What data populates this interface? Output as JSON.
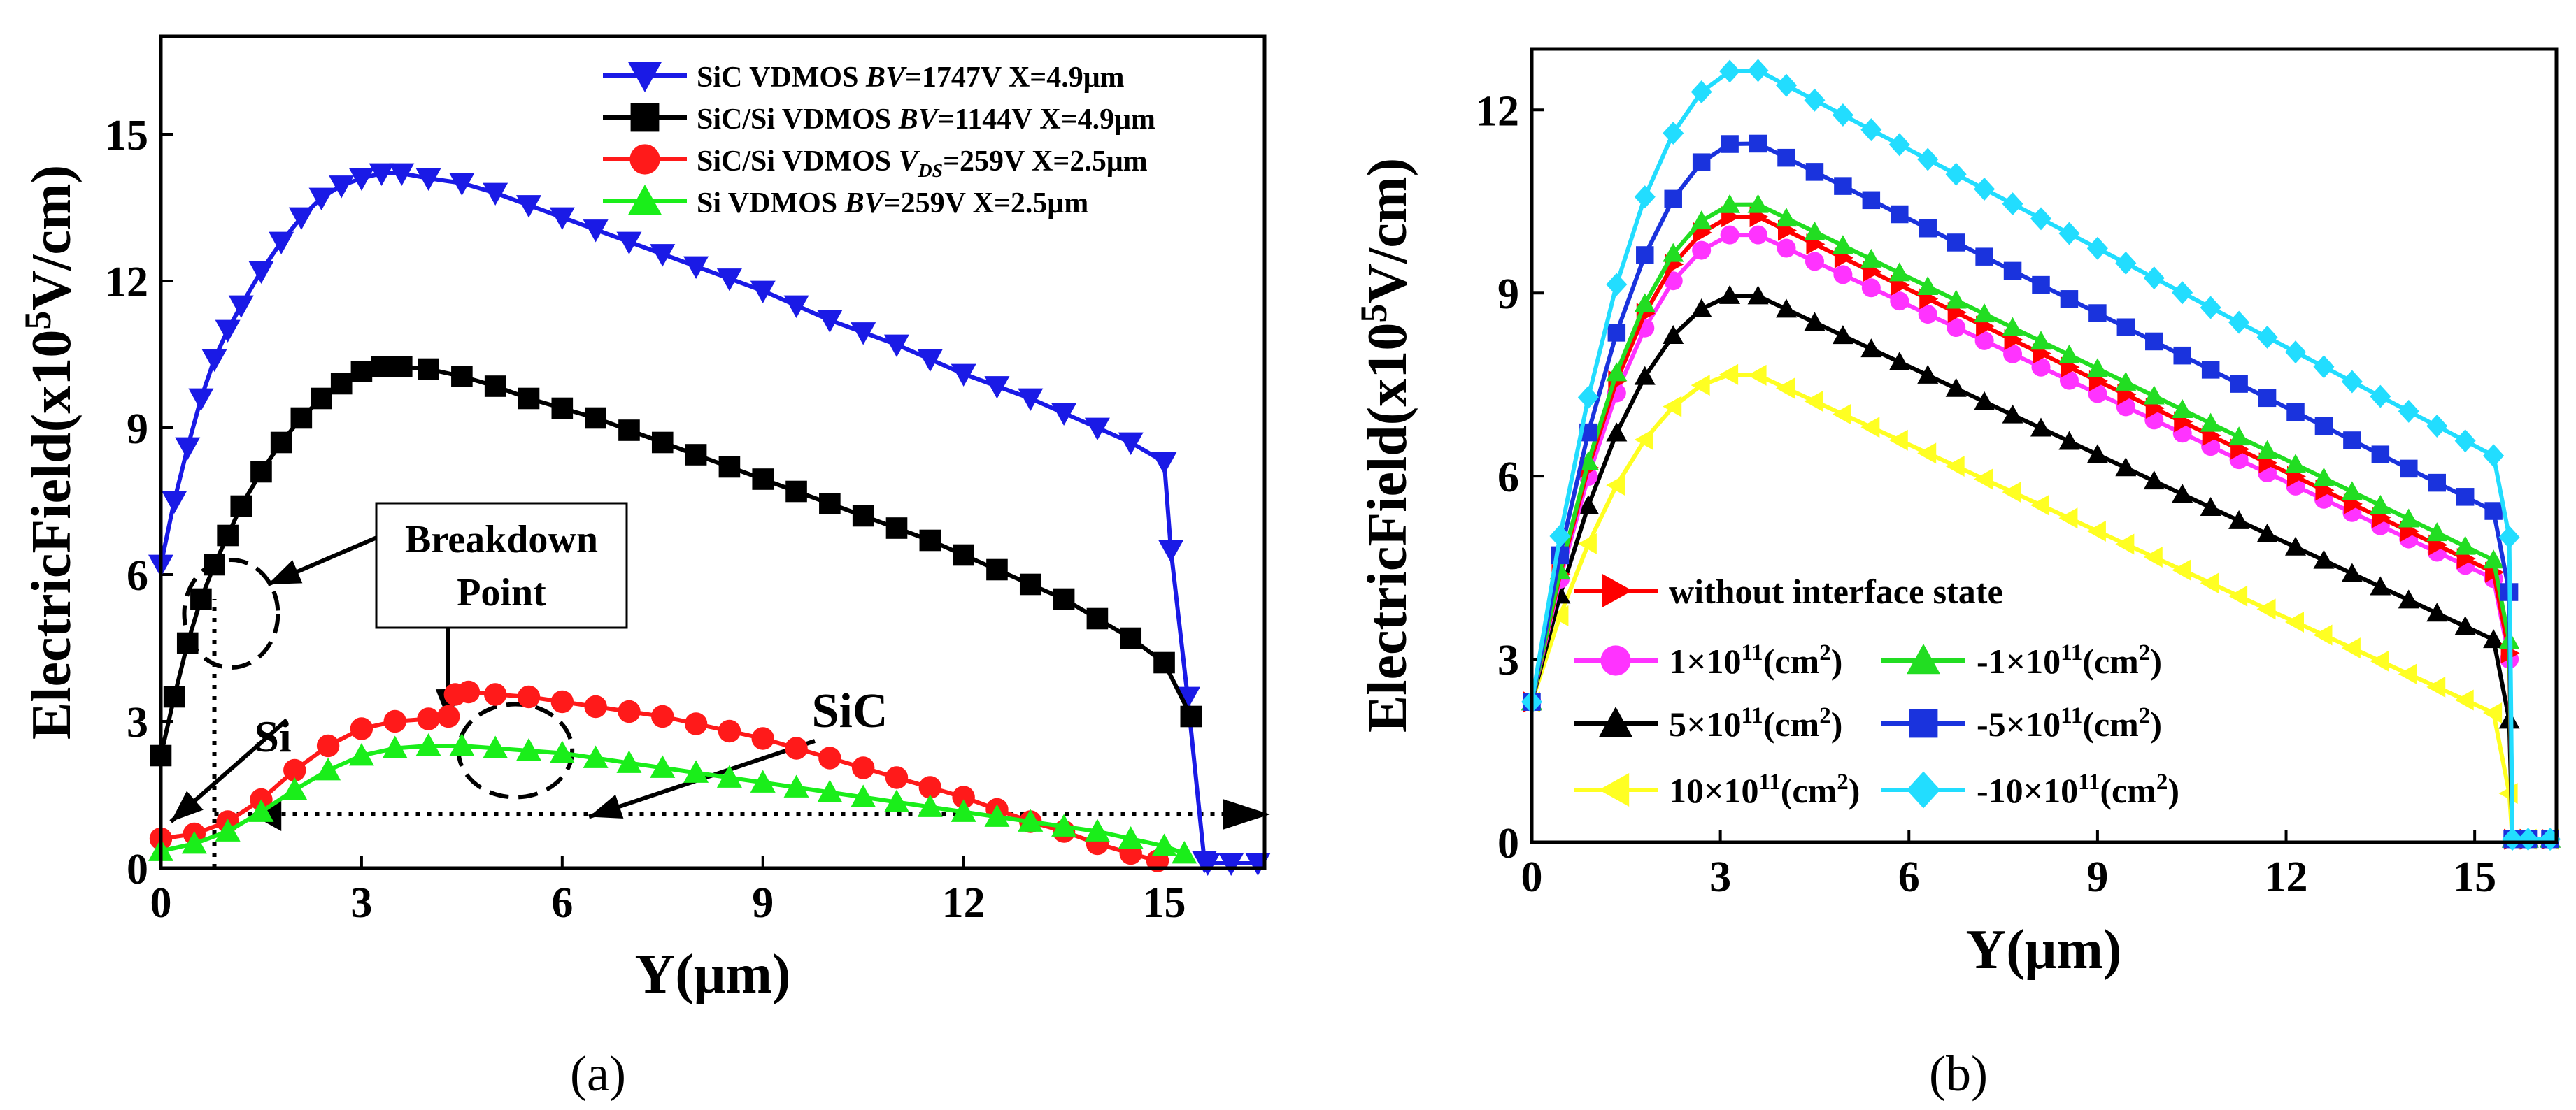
{
  "chart_data": [
    {
      "id": "a",
      "type": "line",
      "xlabel": "Y(μm)",
      "ylabel_parts": [
        "ElectricField(x10",
        "5",
        "V/cm)"
      ],
      "xlim": [
        0,
        16.5
      ],
      "ylim": [
        0,
        17
      ],
      "xticks": [
        0,
        3,
        6,
        9,
        12,
        15
      ],
      "yticks": [
        0,
        3,
        6,
        9,
        12,
        15
      ],
      "caption": "(a)",
      "legend_position": "top-right",
      "series": [
        {
          "name": "SiC VDMOS BV=1747V X=4.9μm",
          "legend_parts": [
            [
              "SiC VDMOS ",
              "n"
            ],
            [
              "BV",
              "i"
            ],
            [
              "=1747V X=4.9μm",
              "n"
            ]
          ],
          "color": "#1a1ae6",
          "marker": "tri_down",
          "x": [
            0,
            0.2,
            0.4,
            0.6,
            0.8,
            1.0,
            1.2,
            1.5,
            1.8,
            2.1,
            2.4,
            2.7,
            3.0,
            3.3,
            3.6,
            4.0,
            4.5,
            5.0,
            5.5,
            6.0,
            6.5,
            7.0,
            7.5,
            8.0,
            8.5,
            9.0,
            9.5,
            10.0,
            10.5,
            11.0,
            11.5,
            12.0,
            12.5,
            13.0,
            13.5,
            14.0,
            14.5,
            15.0,
            15.1,
            15.35,
            15.6,
            15.65,
            16.0,
            16.4
          ],
          "y": [
            6.2,
            7.5,
            8.6,
            9.6,
            10.4,
            11.0,
            11.5,
            12.2,
            12.8,
            13.3,
            13.7,
            13.95,
            14.1,
            14.2,
            14.2,
            14.1,
            14.0,
            13.8,
            13.55,
            13.3,
            13.05,
            12.8,
            12.55,
            12.3,
            12.05,
            11.8,
            11.5,
            11.2,
            10.95,
            10.7,
            10.4,
            10.1,
            9.85,
            9.6,
            9.3,
            9.0,
            8.7,
            8.3,
            6.5,
            3.5,
            0.15,
            0.1,
            0.1,
            0.1
          ]
        },
        {
          "name": "SiC/Si VDMOS BV=1144V X=4.9μm",
          "legend_parts": [
            [
              "SiC/Si VDMOS ",
              "n"
            ],
            [
              "BV",
              "i"
            ],
            [
              "=1144V X=4.9μm",
              "n"
            ]
          ],
          "color": "#000000",
          "marker": "square",
          "x": [
            0,
            0.2,
            0.4,
            0.6,
            0.8,
            1.0,
            1.2,
            1.5,
            1.8,
            2.1,
            2.4,
            2.7,
            3.0,
            3.3,
            3.6,
            4.0,
            4.5,
            5.0,
            5.5,
            6.0,
            6.5,
            7.0,
            7.5,
            8.0,
            8.5,
            9.0,
            9.5,
            10.0,
            10.5,
            11.0,
            11.5,
            12.0,
            12.5,
            13.0,
            13.5,
            14.0,
            14.5,
            15.0,
            15.4
          ],
          "y": [
            2.3,
            3.5,
            4.6,
            5.5,
            6.2,
            6.8,
            7.4,
            8.1,
            8.7,
            9.2,
            9.6,
            9.9,
            10.15,
            10.25,
            10.25,
            10.2,
            10.05,
            9.85,
            9.6,
            9.4,
            9.2,
            8.95,
            8.7,
            8.45,
            8.2,
            7.95,
            7.7,
            7.45,
            7.2,
            6.95,
            6.7,
            6.4,
            6.1,
            5.8,
            5.5,
            5.1,
            4.7,
            4.2,
            3.1
          ]
        },
        {
          "name": "SiC/Si VDMOS VDS=259V X=2.5μm",
          "legend_parts": [
            [
              "SiC/Si VDMOS ",
              "n"
            ],
            [
              "V",
              "i"
            ],
            [
              "DS",
              "isub"
            ],
            [
              "=259V X=2.5μm",
              "n"
            ]
          ],
          "color": "#ff1a1a",
          "marker": "circle",
          "x": [
            0,
            0.5,
            1.0,
            1.5,
            2.0,
            2.5,
            3.0,
            3.5,
            4.0,
            4.3,
            4.4,
            4.6,
            5.0,
            5.5,
            6.0,
            6.5,
            7.0,
            7.5,
            8.0,
            8.5,
            9.0,
            9.5,
            10.0,
            10.5,
            11.0,
            11.5,
            12.0,
            12.5,
            13.0,
            13.5,
            14.0,
            14.5,
            14.9
          ],
          "y": [
            0.6,
            0.7,
            0.95,
            1.4,
            2.0,
            2.5,
            2.85,
            3.0,
            3.05,
            3.1,
            3.55,
            3.6,
            3.55,
            3.5,
            3.4,
            3.3,
            3.2,
            3.1,
            2.95,
            2.8,
            2.65,
            2.45,
            2.25,
            2.05,
            1.85,
            1.65,
            1.45,
            1.2,
            0.95,
            0.75,
            0.5,
            0.3,
            0.15
          ]
        },
        {
          "name": "Si VDMOS BV=259V X=2.5μm",
          "legend_parts": [
            [
              "Si VDMOS ",
              "n"
            ],
            [
              "BV",
              "i"
            ],
            [
              "=259V X=2.5μm",
              "n"
            ]
          ],
          "color": "#1aee1a",
          "marker": "tri_up",
          "x": [
            0,
            0.5,
            1.0,
            1.5,
            2.0,
            2.5,
            3.0,
            3.5,
            4.0,
            4.5,
            5.0,
            5.5,
            6.0,
            6.5,
            7.0,
            7.5,
            8.0,
            8.5,
            9.0,
            9.5,
            10.0,
            10.5,
            11.0,
            11.5,
            12.0,
            12.5,
            13.0,
            13.5,
            14.0,
            14.5,
            15.0,
            15.3
          ],
          "y": [
            0.35,
            0.5,
            0.75,
            1.15,
            1.6,
            2.0,
            2.3,
            2.45,
            2.5,
            2.5,
            2.45,
            2.4,
            2.35,
            2.25,
            2.15,
            2.05,
            1.95,
            1.85,
            1.75,
            1.65,
            1.55,
            1.45,
            1.35,
            1.25,
            1.15,
            1.05,
            0.95,
            0.85,
            0.75,
            0.6,
            0.45,
            0.3
          ]
        }
      ],
      "reference_lines": [
        {
          "type": "vertical",
          "x": 0.8,
          "y_from": 0,
          "y_to": 5.5
        },
        {
          "type": "horizontal",
          "y": 1.1,
          "x_from": 0.8,
          "x_to": 16.5
        }
      ],
      "annotations": [
        {
          "text_lines": [
            "Breakdown",
            "Point"
          ],
          "boxed": true,
          "target": "breakdown"
        },
        {
          "text": "Si",
          "target": "si"
        },
        {
          "text": "SiC",
          "target": "sic"
        }
      ],
      "ellipses": [
        {
          "name": "breakdown-ellipse",
          "cx": 1.05,
          "cy": 5.2,
          "rx": 0.7,
          "ry": 1.1
        },
        {
          "name": "peak-ellipse",
          "cx": 5.3,
          "cy": 2.4,
          "rx": 0.85,
          "ry": 0.95
        }
      ]
    },
    {
      "id": "b",
      "type": "line",
      "xlabel": "Y(μm)",
      "ylabel_parts": [
        "ElectricField(x10",
        "5",
        "V/cm)"
      ],
      "xlim": [
        0,
        16.3
      ],
      "ylim": [
        0,
        13
      ],
      "xticks": [
        0,
        3,
        6,
        9,
        12,
        15
      ],
      "yticks": [
        0,
        3,
        6,
        9,
        12
      ],
      "caption": "(b)",
      "legend_position": "bottom-center",
      "series": [
        {
          "name": "without interface state",
          "legend_parts": [
            [
              "without interface state",
              "n"
            ]
          ],
          "color": "#ff0000",
          "marker": "tri_right",
          "peak": 10.3,
          "end": 3.1
        },
        {
          "name": "1×10^11(cm^2)",
          "legend_parts": [
            [
              "1×10",
              "n"
            ],
            [
              "11",
              "sup"
            ],
            [
              "(cm",
              "n"
            ],
            [
              "2",
              "sup"
            ],
            [
              ")",
              "n"
            ]
          ],
          "color": "#ff33ff",
          "marker": "circle",
          "peak": 10.0,
          "end": 3.0
        },
        {
          "name": "-1×10^11(cm^2)",
          "legend_parts": [
            [
              "-1×10",
              "n"
            ],
            [
              "11",
              "sup"
            ],
            [
              "(cm",
              "n"
            ],
            [
              "2",
              "sup"
            ],
            [
              ")",
              "n"
            ]
          ],
          "color": "#22dd22",
          "marker": "tri_up",
          "peak": 10.5,
          "end": 3.3
        },
        {
          "name": "5×10^11(cm^2)",
          "legend_parts": [
            [
              "5×10",
              "n"
            ],
            [
              "11",
              "sup"
            ],
            [
              "(cm",
              "n"
            ],
            [
              "2",
              "sup"
            ],
            [
              ")",
              "n"
            ]
          ],
          "color": "#000000",
          "marker": "tri_up",
          "peak": 9.0,
          "end": 2.0
        },
        {
          "name": "-5×10^11(cm^2)",
          "legend_parts": [
            [
              "-5×10",
              "n"
            ],
            [
              "11",
              "sup"
            ],
            [
              "(cm",
              "n"
            ],
            [
              "2",
              "sup"
            ],
            [
              ")",
              "n"
            ]
          ],
          "color": "#1a33dd",
          "marker": "square",
          "peak": 11.5,
          "end": 4.1
        },
        {
          "name": "10×10^11(cm^2)",
          "legend_parts": [
            [
              "10×10",
              "n"
            ],
            [
              "11",
              "sup"
            ],
            [
              "(cm",
              "n"
            ],
            [
              "2",
              "sup"
            ],
            [
              ")",
              "n"
            ]
          ],
          "color": "#ffff22",
          "marker": "tri_left",
          "peak": 7.7,
          "end": 0.8
        },
        {
          "name": "-10×10^11(cm^2)",
          "legend_parts": [
            [
              "-10×10",
              "n"
            ],
            [
              "11",
              "sup"
            ],
            [
              "(cm",
              "n"
            ],
            [
              "2",
              "sup"
            ],
            [
              ")",
              "n"
            ]
          ],
          "color": "#22ddff",
          "marker": "diamond",
          "peak": 12.7,
          "end": 5.0
        }
      ],
      "shape": {
        "start_y": 2.3,
        "peak_x": 3.5,
        "drop_x": 15.55,
        "tail_y": 0.05,
        "x_end": 16.3
      }
    }
  ]
}
